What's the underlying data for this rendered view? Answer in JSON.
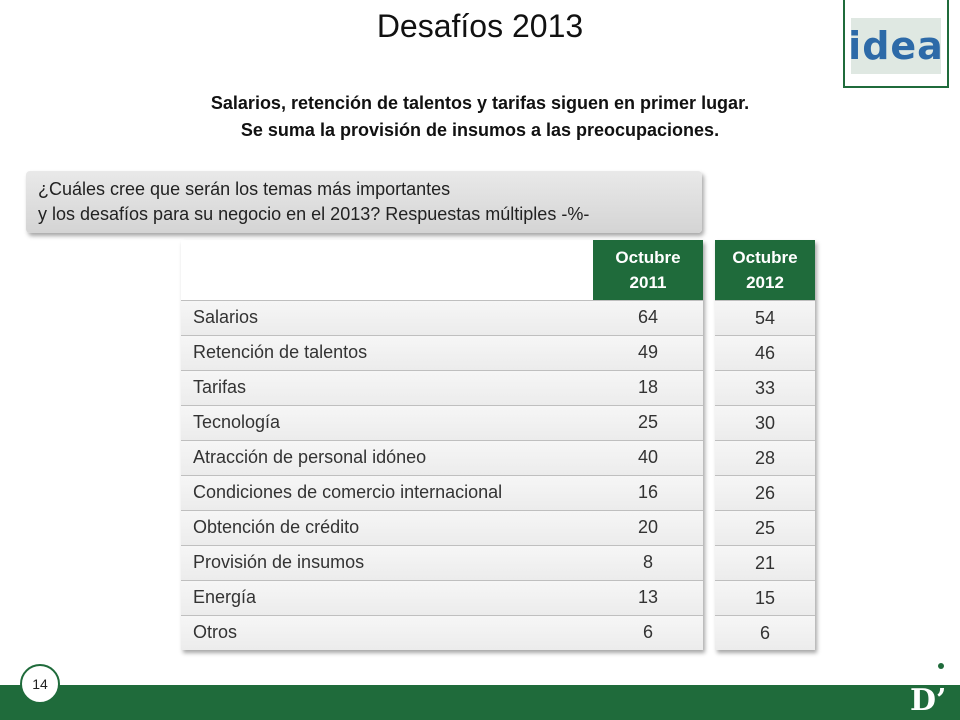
{
  "title": "Desafíos 2013",
  "logo": {
    "text": "idea"
  },
  "subtitle": {
    "line1": "Salarios, retención de talentos y tarifas siguen en primer lugar.",
    "line2": "Se suma la provisión de insumos a las preocupaciones."
  },
  "question": {
    "line1": "¿Cuáles cree que serán los temas más importantes",
    "line2": "y los desafíos para su negocio en el 2013? Respuestas múltiples -%-"
  },
  "table_2011": {
    "header_line1": "Octubre",
    "header_line2": "2011",
    "rows": [
      {
        "label": "Salarios",
        "value": "64"
      },
      {
        "label": "Retención de talentos",
        "value": "49"
      },
      {
        "label": "Tarifas",
        "value": "18"
      },
      {
        "label": "Tecnología",
        "value": "25"
      },
      {
        "label": "Atracción de personal idóneo",
        "value": "40"
      },
      {
        "label": "Condiciones de comercio internacional",
        "value": "16"
      },
      {
        "label": "Obtención de crédito",
        "value": "20"
      },
      {
        "label": "Provisión de insumos",
        "value": "8"
      },
      {
        "label": "Energía",
        "value": "13"
      },
      {
        "label": "Otros",
        "value": "6"
      }
    ]
  },
  "table_2012": {
    "header_line1": "Octubre",
    "header_line2": "2012",
    "values": [
      "54",
      "46",
      "33",
      "30",
      "28",
      "26",
      "25",
      "21",
      "15",
      "6"
    ]
  },
  "footer": {
    "page_number": "14",
    "brand": "D’"
  },
  "colors": {
    "accent": "#1f6b3b",
    "logo_text": "#2d6aa8"
  }
}
